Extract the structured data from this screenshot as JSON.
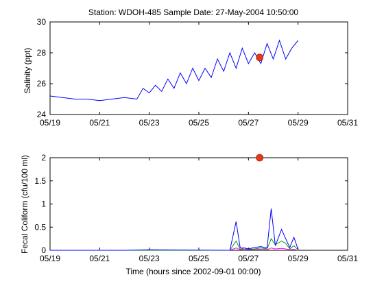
{
  "chart_data": [
    {
      "type": "line",
      "title": "Station: WDOH-485  Sample Date: 27-May-2004 10:50:00",
      "xlabel": "",
      "ylabel": "Salinity (ppt)",
      "xlim": [
        "2004-05-19",
        "2004-05-31"
      ],
      "ylim": [
        24,
        30
      ],
      "xticks": [
        "05/19",
        "05/21",
        "05/23",
        "05/25",
        "05/27",
        "05/29",
        "05/31"
      ],
      "yticks": [
        "24",
        "26",
        "28",
        "30"
      ],
      "series_color": "#0000ff",
      "sample_color": "#e03a1a",
      "x": [
        "2004-05-19 00:00",
        "2004-05-19 12:00",
        "2004-05-20 00:00",
        "2004-05-20 12:00",
        "2004-05-21 00:00",
        "2004-05-21 12:00",
        "2004-05-22 00:00",
        "2004-05-22 12:00",
        "2004-05-22 18:00",
        "2004-05-23 00:00",
        "2004-05-23 06:00",
        "2004-05-23 12:00",
        "2004-05-23 18:00",
        "2004-05-24 00:00",
        "2004-05-24 06:00",
        "2004-05-24 12:00",
        "2004-05-24 18:00",
        "2004-05-25 00:00",
        "2004-05-25 06:00",
        "2004-05-25 12:00",
        "2004-05-25 18:00",
        "2004-05-26 00:00",
        "2004-05-26 06:00",
        "2004-05-26 12:00",
        "2004-05-26 18:00",
        "2004-05-27 00:00",
        "2004-05-27 06:00",
        "2004-05-27 12:00",
        "2004-05-27 18:00",
        "2004-05-28 00:00",
        "2004-05-28 06:00",
        "2004-05-28 12:00",
        "2004-05-28 18:00",
        "2004-05-29 00:00"
      ],
      "y": [
        25.2,
        25.1,
        25.0,
        25.0,
        24.9,
        25.0,
        25.1,
        25.0,
        25.7,
        25.4,
        25.9,
        25.5,
        26.3,
        25.7,
        26.7,
        26.0,
        27.0,
        26.2,
        27.0,
        26.4,
        27.6,
        26.8,
        28.0,
        27.0,
        28.3,
        27.3,
        28.0,
        27.3,
        28.6,
        27.6,
        28.8,
        27.6,
        28.3,
        28.8
      ],
      "sample": {
        "x": "2004-05-27 10:50",
        "y": 27.7
      }
    },
    {
      "type": "line",
      "title": "",
      "xlabel": "Time (hours since 2002-09-01 00:00)",
      "ylabel": "Fecal Coliform (cfu/100 ml)",
      "xlim": [
        "2004-05-19",
        "2004-05-31"
      ],
      "ylim": [
        0,
        2
      ],
      "xticks": [
        "05/19",
        "05/21",
        "05/23",
        "05/25",
        "05/27",
        "05/29",
        "05/31"
      ],
      "yticks": [
        "0",
        "0.5",
        "1",
        "1.5",
        "2"
      ],
      "sample_color": "#e03a1a",
      "x": [
        "2004-05-19 00:00",
        "2004-05-22 00:00",
        "2004-05-23 00:00",
        "2004-05-26 06:00",
        "2004-05-26 12:00",
        "2004-05-26 16:00",
        "2004-05-26 20:00",
        "2004-05-27 00:00",
        "2004-05-27 06:00",
        "2004-05-27 12:00",
        "2004-05-27 18:00",
        "2004-05-27 22:00",
        "2004-05-28 02:00",
        "2004-05-28 08:00",
        "2004-05-28 12:00",
        "2004-05-28 16:00",
        "2004-05-28 20:00",
        "2004-05-29 00:00"
      ],
      "series": [
        {
          "color": "#0000ff",
          "values": [
            0.0,
            0.0,
            0.01,
            0.0,
            0.62,
            0.05,
            0.05,
            0.03,
            0.06,
            0.08,
            0.05,
            0.9,
            0.1,
            0.45,
            0.25,
            0.06,
            0.28,
            0.02
          ]
        },
        {
          "color": "#00a000",
          "values": [
            0.0,
            0.0,
            0.0,
            0.0,
            0.2,
            0.02,
            0.05,
            0.02,
            0.03,
            0.05,
            0.03,
            0.25,
            0.12,
            0.2,
            0.15,
            0.03,
            0.1,
            0.01
          ]
        },
        {
          "color": "#ff00ff",
          "values": [
            0.0,
            0.0,
            0.0,
            0.0,
            0.05,
            0.01,
            0.02,
            0.01,
            0.02,
            0.02,
            0.01,
            0.05,
            0.03,
            0.04,
            0.03,
            0.01,
            0.02,
            0.0
          ]
        }
      ],
      "sample": {
        "x": "2004-05-27 10:50",
        "y": 2.0
      }
    }
  ]
}
